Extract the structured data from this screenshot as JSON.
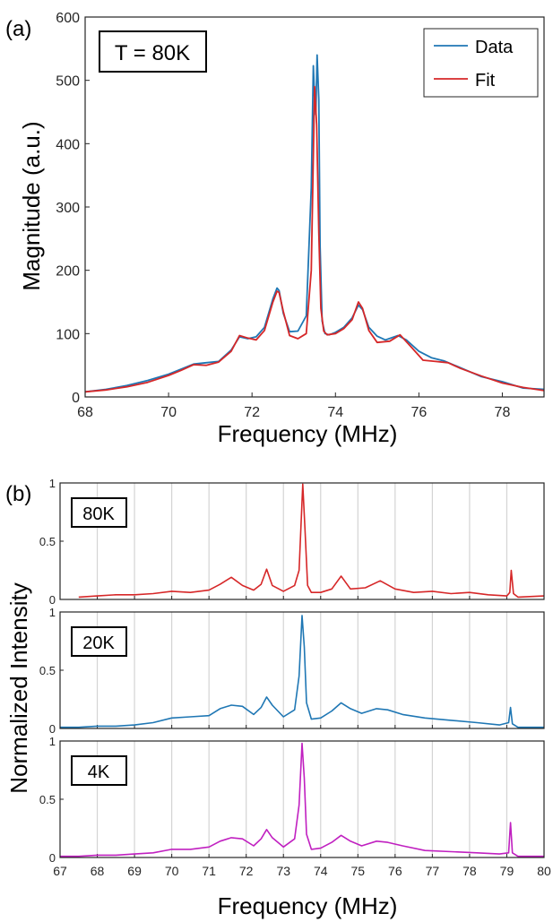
{
  "chart_data": [
    {
      "panel_label": "(a)",
      "type": "line",
      "annotation": "T = 80K",
      "xlabel": "Frequency (MHz)",
      "ylabel": "Magnitude (a.u.)",
      "xlim": [
        68,
        79
      ],
      "ylim": [
        0,
        600
      ],
      "xticks": [
        68,
        70,
        72,
        74,
        76,
        78
      ],
      "yticks": [
        0,
        100,
        200,
        300,
        400,
        500,
        600
      ],
      "legend": {
        "placement": "top-right",
        "entries": [
          "Data",
          "Fit"
        ]
      },
      "colors": {
        "Data": "#1f77b4",
        "Fit": "#d62728"
      },
      "series": [
        {
          "name": "Data",
          "x": [
            68,
            68.5,
            69,
            69.5,
            70,
            70.3,
            70.6,
            70.9,
            71.2,
            71.5,
            71.7,
            71.9,
            72.1,
            72.3,
            72.5,
            72.6,
            72.65,
            72.75,
            72.9,
            73.1,
            73.3,
            73.42,
            73.47,
            73.5,
            73.53,
            73.56,
            73.6,
            73.63,
            73.68,
            73.75,
            73.85,
            74.0,
            74.2,
            74.4,
            74.55,
            74.65,
            74.8,
            75.0,
            75.2,
            75.5,
            75.7,
            76.0,
            76.3,
            76.6,
            77.0,
            77.5,
            78.0,
            78.5,
            79.0
          ],
          "y": [
            8,
            12,
            18,
            26,
            36,
            44,
            52,
            54,
            56,
            74,
            95,
            92,
            95,
            110,
            155,
            172,
            168,
            132,
            103,
            104,
            128,
            330,
            523,
            470,
            446,
            540,
            470,
            240,
            120,
            100,
            98,
            102,
            110,
            125,
            145,
            138,
            110,
            96,
            90,
            97,
            90,
            72,
            62,
            57,
            46,
            32,
            24,
            14,
            12
          ]
        },
        {
          "name": "Fit",
          "x": [
            68,
            68.5,
            69,
            69.5,
            70,
            70.3,
            70.6,
            70.9,
            71.2,
            71.5,
            71.7,
            71.9,
            72.1,
            72.3,
            72.5,
            72.6,
            72.65,
            72.75,
            72.9,
            73.1,
            73.3,
            73.42,
            73.5,
            73.55,
            73.6,
            73.65,
            73.72,
            73.8,
            74.0,
            74.2,
            74.4,
            74.55,
            74.65,
            74.8,
            75.0,
            75.3,
            75.55,
            75.8,
            76.1,
            76.4,
            76.7,
            77.0,
            77.5,
            78.0,
            78.5,
            79.0
          ],
          "y": [
            8,
            11,
            16,
            23,
            34,
            42,
            51,
            50,
            55,
            72,
            97,
            93,
            90,
            105,
            150,
            167,
            165,
            135,
            97,
            92,
            100,
            200,
            490,
            430,
            260,
            140,
            104,
            98,
            100,
            108,
            122,
            150,
            140,
            105,
            86,
            88,
            98,
            80,
            58,
            56,
            54,
            45,
            33,
            22,
            15,
            10
          ]
        }
      ]
    },
    {
      "panel_label": "(b)",
      "type": "line",
      "xlabel": "Frequency (MHz)",
      "ylabel": "Normalized Intensity",
      "xlim": [
        67,
        80
      ],
      "xticks": [
        67,
        68,
        69,
        70,
        71,
        72,
        73,
        74,
        75,
        76,
        77,
        78,
        79,
        80
      ],
      "vertical_gridlines": [
        68,
        69,
        70,
        71,
        72,
        73,
        74,
        75,
        76,
        77,
        78,
        79
      ],
      "ylim": [
        0,
        1
      ],
      "yticks": [
        0,
        0.5,
        1
      ],
      "subplots": [
        {
          "label": "80K",
          "color": "#d62728",
          "x": [
            67.5,
            68,
            68.5,
            69,
            69.5,
            70,
            70.5,
            71,
            71.3,
            71.6,
            71.9,
            72.2,
            72.4,
            72.55,
            72.7,
            73.0,
            73.3,
            73.42,
            73.52,
            73.58,
            73.65,
            73.75,
            74.0,
            74.3,
            74.55,
            74.8,
            75.2,
            75.6,
            76.0,
            76.5,
            77.0,
            77.5,
            78.0,
            78.5,
            79.0,
            79.08,
            79.12,
            79.18,
            79.3,
            80.0
          ],
          "y": [
            0.02,
            0.03,
            0.04,
            0.04,
            0.05,
            0.07,
            0.06,
            0.08,
            0.13,
            0.19,
            0.12,
            0.08,
            0.13,
            0.26,
            0.12,
            0.07,
            0.12,
            0.25,
            0.99,
            0.6,
            0.12,
            0.06,
            0.06,
            0.09,
            0.2,
            0.09,
            0.1,
            0.16,
            0.09,
            0.06,
            0.07,
            0.05,
            0.06,
            0.04,
            0.03,
            0.06,
            0.25,
            0.05,
            0.02,
            0.03
          ]
        },
        {
          "label": "20K",
          "color": "#1f77b4",
          "x": [
            67,
            67.5,
            68,
            68.5,
            69,
            69.5,
            70,
            70.5,
            71,
            71.3,
            71.6,
            71.9,
            72.2,
            72.4,
            72.55,
            72.7,
            73.0,
            73.3,
            73.42,
            73.5,
            73.56,
            73.62,
            73.75,
            74.0,
            74.3,
            74.55,
            74.8,
            75.1,
            75.5,
            75.8,
            76.2,
            76.8,
            77.5,
            78.2,
            78.8,
            79.05,
            79.1,
            79.15,
            79.3,
            80.0
          ],
          "y": [
            0.01,
            0.01,
            0.02,
            0.02,
            0.03,
            0.05,
            0.09,
            0.1,
            0.11,
            0.17,
            0.2,
            0.19,
            0.12,
            0.18,
            0.27,
            0.2,
            0.1,
            0.16,
            0.45,
            0.97,
            0.7,
            0.22,
            0.08,
            0.09,
            0.15,
            0.22,
            0.17,
            0.13,
            0.17,
            0.16,
            0.12,
            0.09,
            0.07,
            0.05,
            0.03,
            0.05,
            0.18,
            0.04,
            0.01,
            0.01
          ]
        },
        {
          "label": "4K",
          "color": "#c020c0",
          "x": [
            67,
            67.5,
            68,
            68.5,
            69,
            69.5,
            70,
            70.5,
            71,
            71.3,
            71.6,
            71.9,
            72.2,
            72.4,
            72.55,
            72.7,
            73.0,
            73.3,
            73.42,
            73.5,
            73.56,
            73.62,
            73.75,
            74.0,
            74.3,
            74.55,
            74.8,
            75.1,
            75.5,
            75.8,
            76.2,
            76.8,
            77.5,
            78.2,
            78.8,
            79.05,
            79.1,
            79.15,
            79.3,
            80.0
          ],
          "y": [
            0.01,
            0.01,
            0.02,
            0.02,
            0.03,
            0.04,
            0.07,
            0.07,
            0.09,
            0.14,
            0.17,
            0.16,
            0.1,
            0.16,
            0.24,
            0.17,
            0.09,
            0.16,
            0.45,
            0.98,
            0.68,
            0.2,
            0.07,
            0.08,
            0.13,
            0.19,
            0.14,
            0.1,
            0.14,
            0.13,
            0.1,
            0.06,
            0.05,
            0.04,
            0.03,
            0.04,
            0.3,
            0.04,
            0.01,
            0.01
          ]
        }
      ]
    }
  ]
}
